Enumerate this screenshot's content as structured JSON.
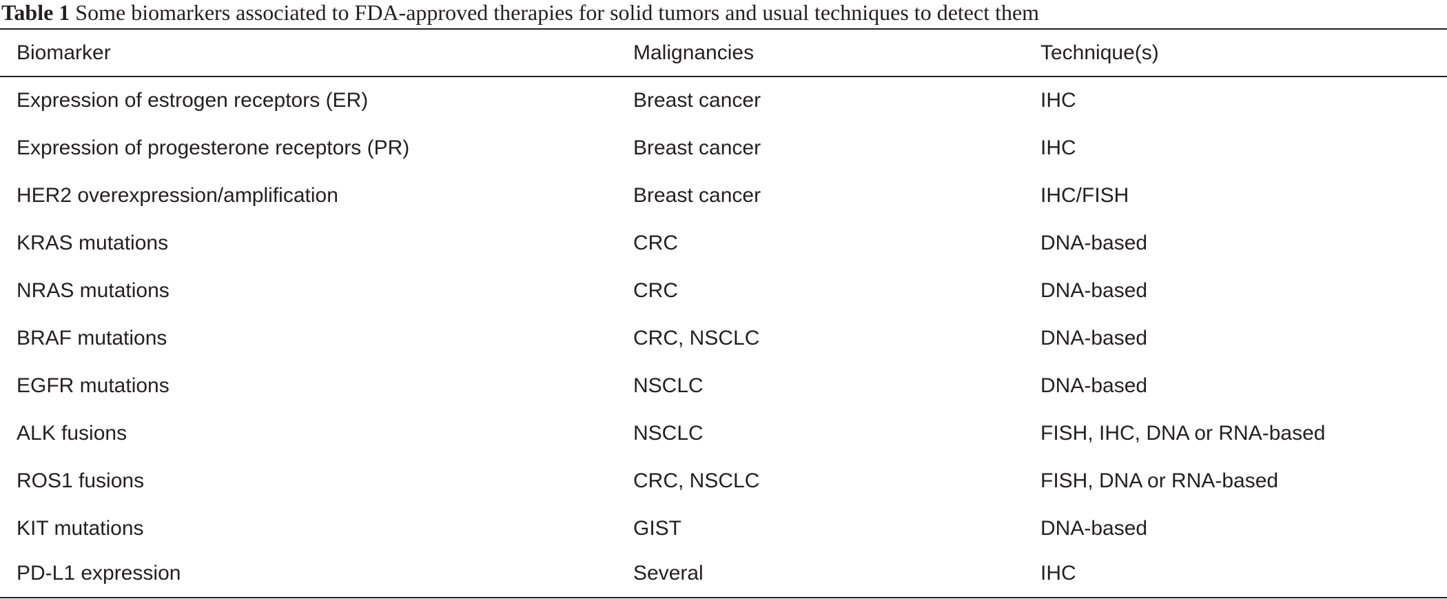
{
  "caption": {
    "label": "Table 1",
    "text": "Some biomarkers associated to FDA-approved therapies for solid tumors and usual techniques to detect them"
  },
  "table": {
    "headers": [
      "Biomarker",
      "Malignancies",
      "Technique(s)"
    ],
    "rows": [
      [
        "Expression of estrogen receptors (ER)",
        "Breast cancer",
        "IHC"
      ],
      [
        "Expression of progesterone receptors (PR)",
        "Breast cancer",
        "IHC"
      ],
      [
        "HER2 overexpression/amplification",
        "Breast cancer",
        "IHC/FISH"
      ],
      [
        "KRAS mutations",
        "CRC",
        "DNA-based"
      ],
      [
        "NRAS mutations",
        "CRC",
        "DNA-based"
      ],
      [
        "BRAF mutations",
        "CRC, NSCLC",
        "DNA-based"
      ],
      [
        "EGFR mutations",
        "NSCLC",
        "DNA-based"
      ],
      [
        "ALK fusions",
        "NSCLC",
        "FISH, IHC, DNA or RNA-based"
      ],
      [
        "ROS1 fusions",
        "CRC, NSCLC",
        "FISH, DNA or RNA-based"
      ],
      [
        "KIT mutations",
        "GIST",
        "DNA-based"
      ],
      [
        "PD-L1 expression",
        "Several",
        "IHC"
      ]
    ]
  }
}
